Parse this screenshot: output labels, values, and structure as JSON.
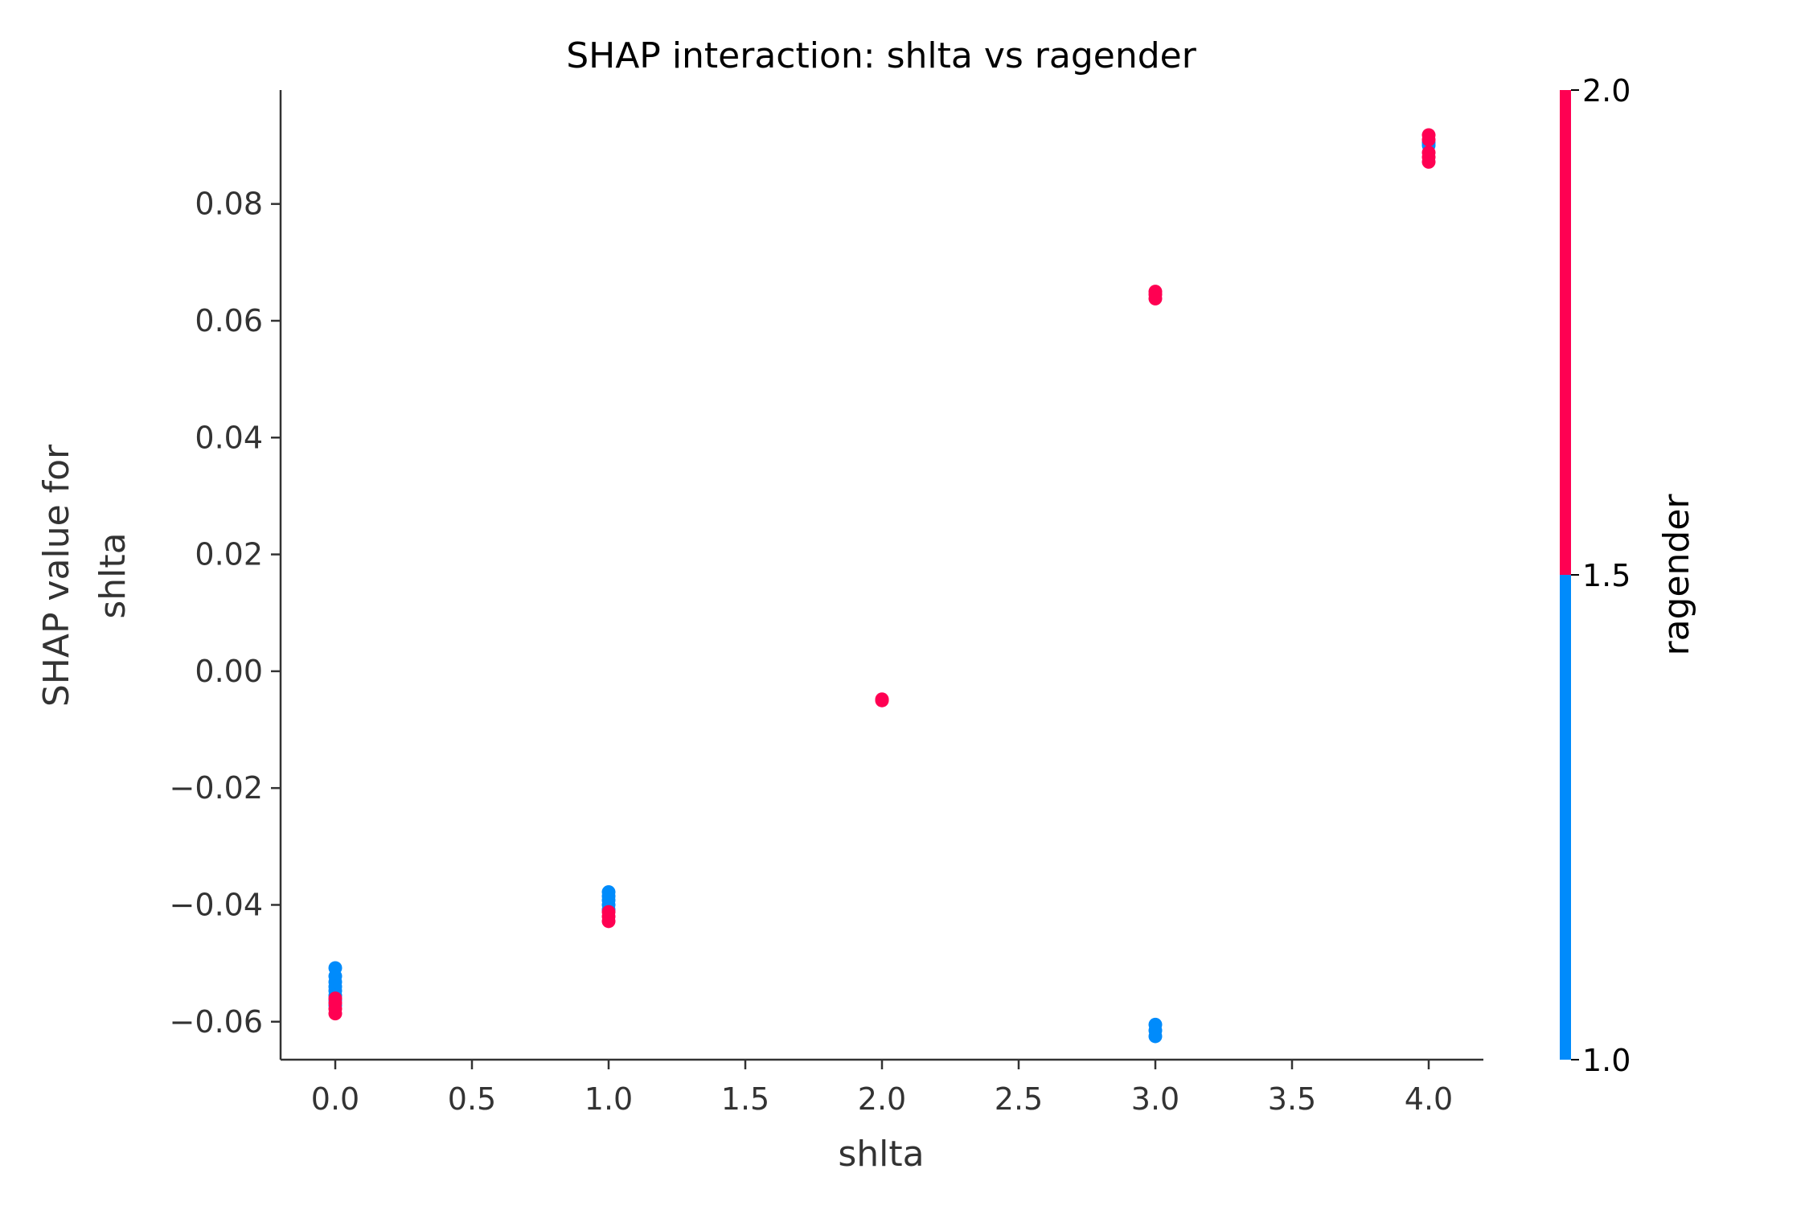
{
  "chart_data": {
    "type": "scatter",
    "title": "SHAP interaction: shlta vs ragender",
    "xlabel": "shlta",
    "ylabel_lines": [
      "SHAP value for",
      "shlta"
    ],
    "xlim": [
      -0.2,
      4.2
    ],
    "ylim": [
      -0.0665,
      0.0995
    ],
    "x_ticks": [
      0.0,
      0.5,
      1.0,
      1.5,
      2.0,
      2.5,
      3.0,
      3.5,
      4.0
    ],
    "x_tick_labels": [
      "0.0",
      "0.5",
      "1.0",
      "1.5",
      "2.0",
      "2.5",
      "3.0",
      "3.5",
      "4.0"
    ],
    "y_ticks": [
      -0.06,
      -0.04,
      -0.02,
      0.0,
      0.02,
      0.04,
      0.06,
      0.08
    ],
    "y_tick_labels": [
      "−0.06",
      "−0.04",
      "−0.02",
      "0.00",
      "0.02",
      "0.04",
      "0.06",
      "0.08"
    ],
    "color_feature": "ragender",
    "colorbar": {
      "label": "ragender",
      "range": [
        1.0,
        2.0
      ],
      "ticks": [
        1.0,
        1.5,
        2.0
      ],
      "tick_labels": [
        "1.0",
        "1.5",
        "2.0"
      ],
      "low_color": "#008bfb",
      "high_color": "#ff0052"
    },
    "grid": false,
    "series": [
      {
        "ragender": 1.0,
        "color": "#008bfb",
        "x": [
          0,
          0,
          0,
          0,
          0,
          0,
          0,
          0,
          1,
          1,
          1,
          1,
          1,
          3,
          3,
          3,
          4,
          4
        ],
        "y": [
          -0.0508,
          -0.0522,
          -0.0532,
          -0.054,
          -0.0547,
          -0.0555,
          -0.0563,
          -0.0572,
          -0.0378,
          -0.0385,
          -0.0392,
          -0.04,
          -0.0408,
          -0.0605,
          -0.0615,
          -0.0625,
          0.0905,
          0.09
        ]
      },
      {
        "ragender": 2.0,
        "color": "#ff0052",
        "x": [
          0,
          0,
          0,
          0,
          1,
          1,
          1,
          2,
          2,
          3,
          3,
          3,
          4,
          4,
          4,
          4,
          4
        ],
        "y": [
          -0.056,
          -0.0568,
          -0.0578,
          -0.0586,
          -0.0412,
          -0.042,
          -0.0428,
          -0.0048,
          -0.005,
          0.0638,
          0.0645,
          0.065,
          0.0872,
          0.088,
          0.0888,
          0.091,
          0.0918
        ]
      }
    ]
  }
}
